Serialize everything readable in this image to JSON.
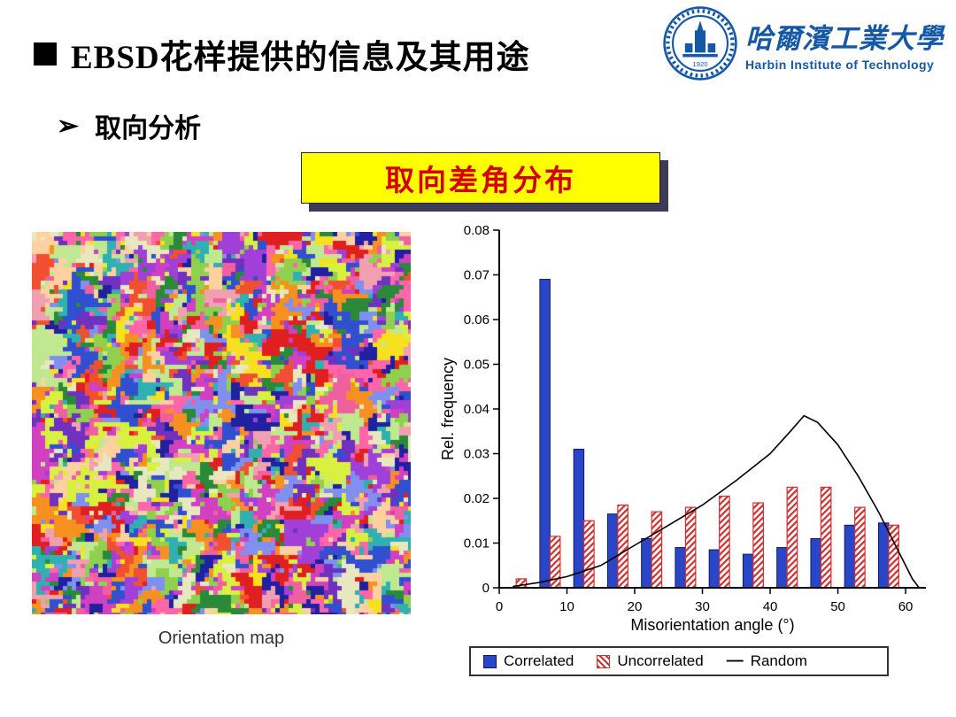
{
  "slide": {
    "title": "EBSD花样提供的信息及其用途",
    "subtitle_marker": "➢",
    "subtitle": "取向分析",
    "banner": "取向差角分布"
  },
  "logo": {
    "cn_name": "哈爾濱工業大學",
    "en_name": "Harbin Institute of Technology",
    "emblem_year": "1920"
  },
  "orientation_map": {
    "caption": "Orientation map"
  },
  "chart_data": {
    "type": "bar",
    "title": "",
    "xlabel": "Misorientation angle (°)",
    "ylabel": "Rel. frequency",
    "xlim": [
      0,
      63
    ],
    "ylim": [
      0,
      0.08
    ],
    "xticks": [
      0,
      10,
      20,
      30,
      40,
      50,
      60
    ],
    "yticks": [
      0,
      0.01,
      0.02,
      0.03,
      0.04,
      0.05,
      0.06,
      0.07,
      0.08
    ],
    "grid": false,
    "legend_position": "bottom",
    "bin_centers": [
      2.5,
      7.5,
      12.5,
      17.5,
      22.5,
      27.5,
      32.5,
      37.5,
      42.5,
      47.5,
      52.5,
      57.5
    ],
    "series": [
      {
        "name": "Correlated",
        "type": "bar",
        "style": "solid-blue",
        "values": [
          0,
          0.069,
          0.031,
          0.0165,
          0.011,
          0.009,
          0.0085,
          0.0075,
          0.009,
          0.011,
          0.014,
          0.0145
        ]
      },
      {
        "name": "Uncorrelated",
        "type": "bar",
        "style": "hatched-red",
        "values": [
          0.002,
          0.0115,
          0.015,
          0.0185,
          0.017,
          0.018,
          0.0205,
          0.019,
          0.0225,
          0.0225,
          0.018,
          0.014
        ]
      },
      {
        "name": "Random",
        "type": "line",
        "style": "black-line",
        "x": [
          2,
          6,
          10,
          15,
          20,
          25,
          30,
          35,
          40,
          43,
          45,
          47,
          50,
          53,
          56,
          59,
          61,
          62
        ],
        "values": [
          0.0003,
          0.0012,
          0.0025,
          0.005,
          0.0095,
          0.014,
          0.0185,
          0.024,
          0.03,
          0.035,
          0.0385,
          0.037,
          0.032,
          0.025,
          0.017,
          0.008,
          0.002,
          0
        ]
      }
    ],
    "legend": [
      "Correlated",
      "Uncorrelated",
      "Random"
    ]
  },
  "colors": {
    "banner_bg": "#ffff00",
    "banner_text": "#d40000",
    "banner_shadow": "#3c3c5a",
    "correlated": "#2a46c8",
    "correlated_edge": "#101a60",
    "uncorrelated": "#d03030",
    "random_line": "#000000",
    "logo_blue": "#1559a6"
  }
}
